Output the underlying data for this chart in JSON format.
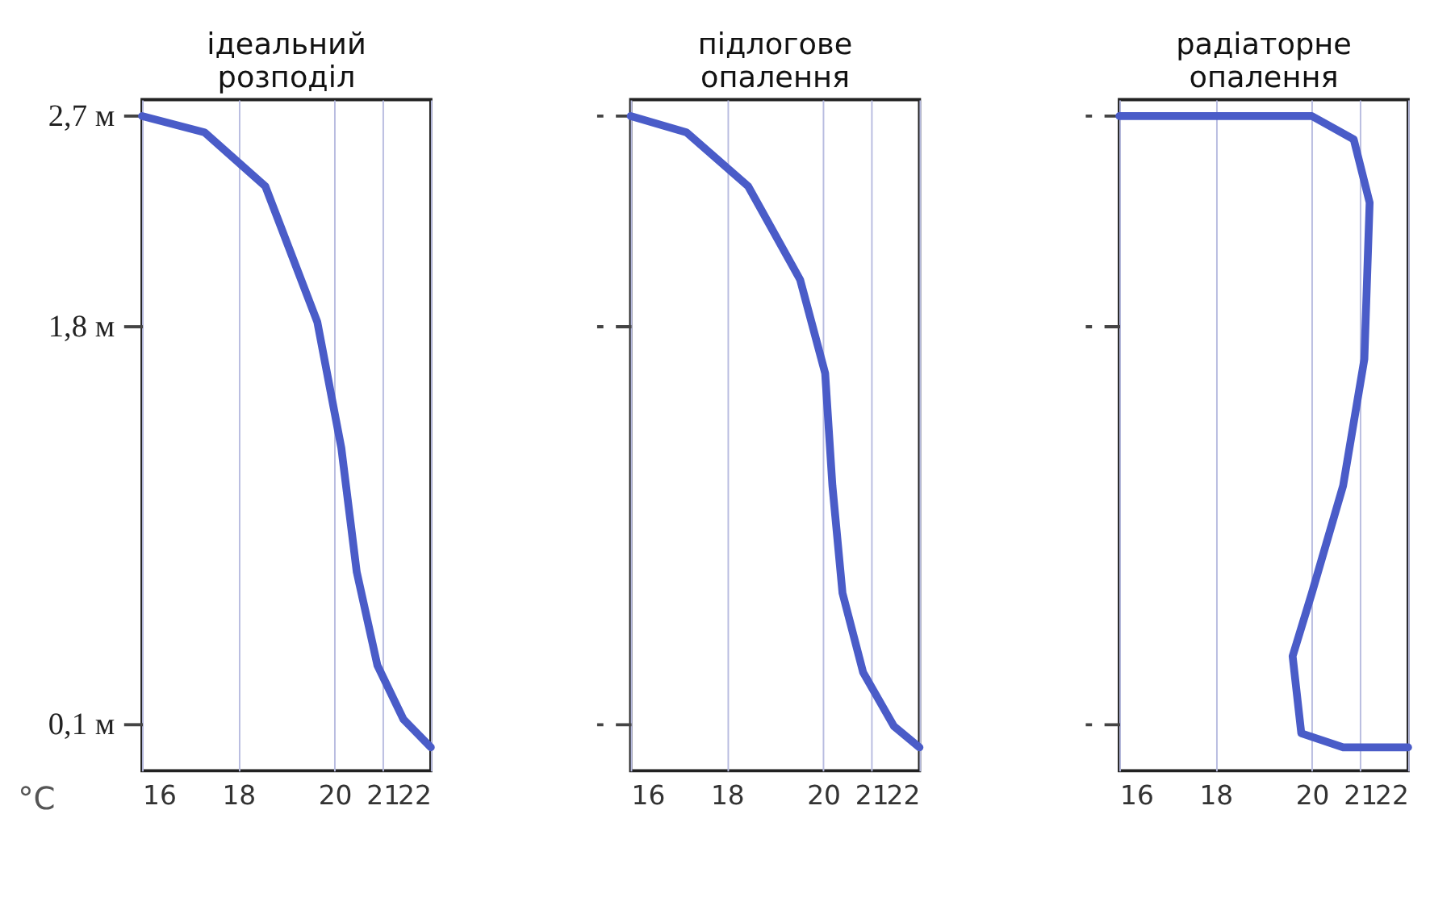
{
  "chart_data": [
    {
      "type": "line",
      "title": "ідеальний\nрозподіл",
      "xlabel": "°C",
      "xlim": [
        16,
        22
      ],
      "xticks": [
        16,
        18,
        20,
        21,
        22
      ],
      "ylim": [
        -0.1,
        2.77
      ],
      "yticks": [
        {
          "value": 2.7,
          "label": "2,7 м"
        },
        {
          "value": 1.8,
          "label": "1,8 м"
        },
        {
          "value": 0.1,
          "label": "0,1 м"
        }
      ],
      "grid": "x",
      "series": [
        {
          "color": "#4a5cc8",
          "x": [
            16,
            17.3,
            18.56,
            19.64,
            20.14,
            20.46,
            20.89,
            21.43,
            22
          ],
          "values": [
            2.7,
            2.63,
            2.4,
            1.82,
            1.28,
            0.75,
            0.35,
            0.12,
            0.0
          ]
        }
      ]
    },
    {
      "type": "line",
      "title": "підлогове\nопалення",
      "xlim": [
        16,
        22
      ],
      "xticks": [
        16,
        18,
        20,
        21,
        22
      ],
      "ylim": [
        -0.1,
        2.77
      ],
      "yticks": [
        {
          "value": 2.7,
          "label": null
        },
        {
          "value": 1.8,
          "label": null
        },
        {
          "value": 0.1,
          "label": null
        }
      ],
      "grid": "x",
      "tick_labels": "x",
      "series": [
        {
          "color": "#4a5cc8",
          "x": [
            16,
            17.16,
            18.44,
            19.52,
            20.04,
            20.19,
            20.4,
            20.83,
            21.47,
            22
          ],
          "values": [
            2.7,
            2.63,
            2.4,
            2.0,
            1.6,
            1.12,
            0.66,
            0.32,
            0.09,
            0.0
          ]
        }
      ]
    },
    {
      "type": "line",
      "title": "радіаторне\nопалення",
      "xlim": [
        16,
        22
      ],
      "xticks": [
        16,
        18,
        20,
        21,
        22
      ],
      "ylim": [
        -0.1,
        2.77
      ],
      "yticks": [
        {
          "value": 2.7,
          "label": null
        },
        {
          "value": 1.8,
          "label": null
        },
        {
          "value": 0.1,
          "label": null
        }
      ],
      "grid": "x",
      "tick_labels": "x",
      "series": [
        {
          "color": "#4a5cc8",
          "x": [
            16,
            20,
            20.87,
            21.2,
            21.09,
            20.65,
            20.0,
            19.6,
            19.78,
            20.65,
            22
          ],
          "values": [
            2.7,
            2.7,
            2.6,
            2.33,
            1.66,
            1.12,
            0.66,
            0.39,
            0.06,
            0.0,
            0.0
          ]
        }
      ]
    }
  ]
}
